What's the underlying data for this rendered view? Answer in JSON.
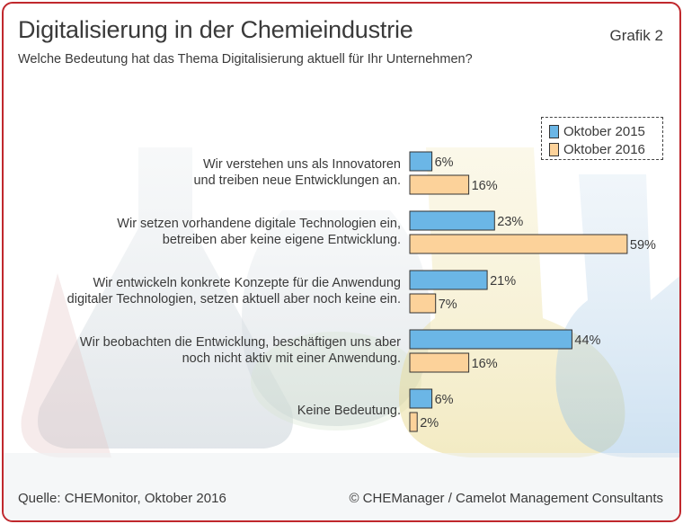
{
  "title": "Digitalisierung in der Chemieindustrie",
  "subtitle": "Welche Bedeutung hat das Thema Digitalisierung aktuell für Ihr Unternehmen?",
  "grafik": "Grafik 2",
  "footer": {
    "source": "Quelle: CHEMonitor, Oktober 2016",
    "copyright": "© CHEManager / Camelot Management Consultants"
  },
  "colors": {
    "series_2015": "#6bb6e6",
    "series_2016": "#fcd29a",
    "border": "#c0282d"
  },
  "chart_data": {
    "type": "bar",
    "orientation": "horizontal",
    "xlim": [
      0,
      60
    ],
    "legend_position": "top-right",
    "grid": false,
    "categories": [
      [
        "Wir verstehen uns als Innovatoren",
        "und treiben neue Entwicklungen an."
      ],
      [
        "Wir setzen vorhandene digitale Technologien ein,",
        "betreiben aber keine eigene Entwicklung."
      ],
      [
        "Wir entwickeln konkrete Konzepte für die Anwendung",
        "digitaler Technologien, setzen aktuell aber noch keine ein."
      ],
      [
        "Wir beobachten die Entwicklung, beschäftigen uns aber",
        "noch nicht aktiv mit einer Anwendung."
      ],
      [
        "Keine Bedeutung."
      ]
    ],
    "series": [
      {
        "name": "Oktober 2015",
        "values": [
          6,
          23,
          21,
          44,
          6
        ],
        "labels": [
          "6%",
          "23%",
          "21%",
          "44%",
          "6%"
        ]
      },
      {
        "name": "Oktober 2016",
        "values": [
          16,
          59,
          7,
          16,
          2
        ],
        "labels": [
          "16%",
          "59%",
          "7%",
          "16%",
          "2%"
        ]
      }
    ]
  }
}
